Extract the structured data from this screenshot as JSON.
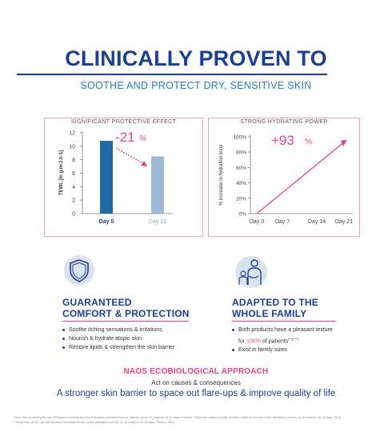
{
  "header": {
    "title": "CLINICALLY PROVEN TO",
    "subtitle": "SOOTHE AND PROTECT DRY, SENSITIVE SKIN"
  },
  "colors": {
    "navy": "#1d3f8f",
    "pink": "#e6438a",
    "bar_dark": "#1f6aa7",
    "bar_light": "#9fb9d8",
    "panel_border": "#e9a5c4"
  },
  "left_panel": {
    "heading": "SIGNIFICANT PROTECTIVE EFFECT",
    "callout": "-21",
    "callout_unit": "%"
  },
  "right_panel": {
    "heading": "STRONG HYDRATING POWER",
    "callout": "+93",
    "callout_unit": "%"
  },
  "chart_data": [
    {
      "type": "bar",
      "title": "SIGNIFICANT PROTECTIVE EFFECT",
      "categories": [
        "Day 0",
        "Day 21"
      ],
      "values": [
        10.8,
        8.5
      ],
      "ylabel": "TEWL [in g.m-2.h-1]",
      "ylim": [
        0,
        12
      ],
      "yticks": [
        0,
        2,
        4,
        6,
        8,
        10,
        12
      ],
      "annotation": "-21%",
      "grid": false
    },
    {
      "type": "line",
      "title": "STRONG HYDRATING POWER",
      "x": [
        "Day 0",
        "Day 7",
        "Day 14",
        "Day 21"
      ],
      "series": [
        {
          "values": [
            0,
            31,
            62,
            93
          ]
        }
      ],
      "ylabel": "% increase in hydration level",
      "ylim": [
        0,
        100
      ],
      "yticks": [
        "0%",
        "20%",
        "40%",
        "60%",
        "80%",
        "100%"
      ],
      "annotation": "+93%",
      "grid": false
    }
  ],
  "features": {
    "left": {
      "icon": "shield-icon",
      "title_line1": "GUARANTEED",
      "title_line2": "COMFORT & PROTECTION",
      "bullets": [
        "Soothe itching sensations & irritations",
        "Nourish & hydrate atopic skin",
        "Restore lipids & strengthen the skin barrier"
      ]
    },
    "right": {
      "icon": "family-icon",
      "title_line1": "ADAPTED TO THE",
      "title_line2": "WHOLE FAMILY",
      "bullet1_pre": "Both products have a pleasant texture",
      "bullet1_mid_pre": "for ",
      "bullet1_pct": "100%",
      "bullet1_post": " of patients",
      "bullet1_sup": "(**)(***)",
      "bullet2": "Exist in family sizes"
    }
  },
  "approach": {
    "title": "NAOS ECOBIOLOGICAL APPROACH",
    "subtitle": "Act on causes & consequences",
    "tagline": "A stronger skin barrier to space out flare-ups & improve quality of life"
  },
  "footnotes": {
    "line1": "*Use test combining the use of Atoderm mousse douche & Atoderm intensive baume, carried out on 11 patients for 21 days in winter. **Use test carried out with Atoderm Huile de douche under paediatric control, on 16 children for 21 days. 2018.",
    "line2": "***Use test carried out with Atoderm intensive baume under paediatric control, on 15 children for 15 days. Poland. 2013."
  }
}
